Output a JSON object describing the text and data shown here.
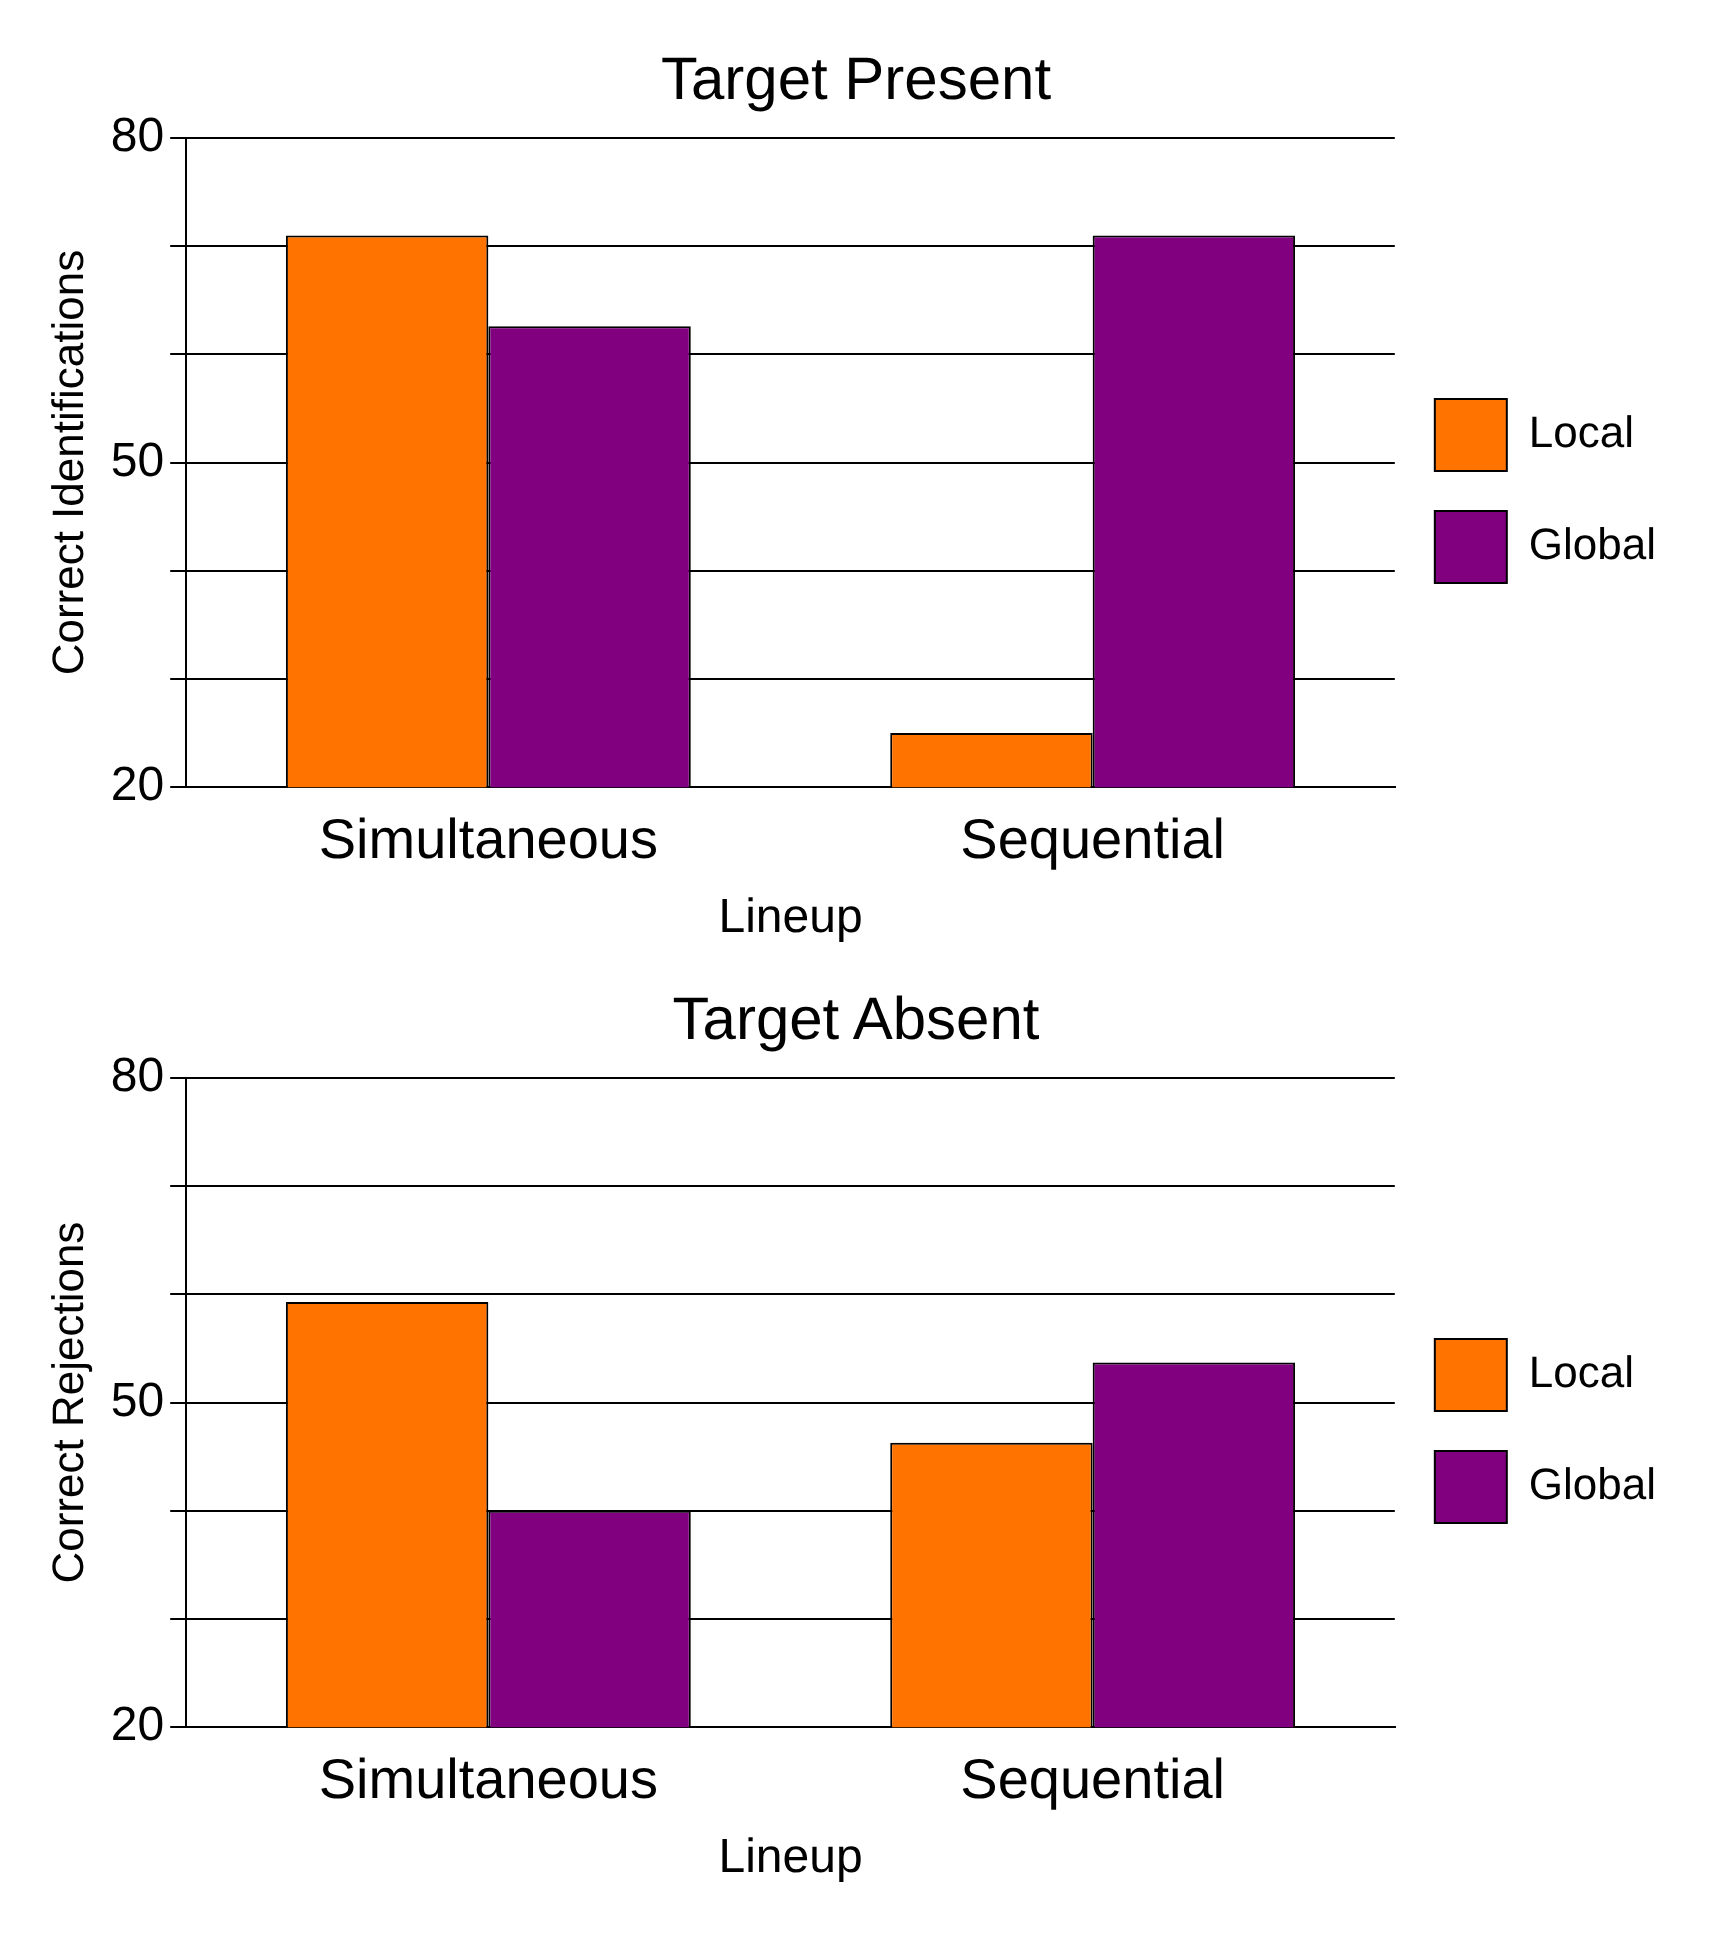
{
  "chart_data": [
    {
      "type": "bar",
      "title": "Target Present",
      "xlabel": "Lineup",
      "ylabel": "Correct Identifications",
      "categories": [
        "Simultaneous",
        "Sequential"
      ],
      "series": [
        {
          "name": "Local",
          "color": "#ff7300",
          "values": [
            71,
            25
          ]
        },
        {
          "name": "Global",
          "color": "#800080",
          "values": [
            62.6,
            71
          ]
        }
      ],
      "ylim": [
        20,
        80
      ],
      "yticks": [
        20,
        {
          "value": 30,
          "label": null
        },
        {
          "value": 40,
          "label": null
        },
        50,
        {
          "value": 60,
          "label": null
        },
        {
          "value": 70,
          "label": null
        },
        80
      ],
      "grid": "y",
      "legend": "right"
    },
    {
      "type": "bar",
      "title": "Target Absent",
      "xlabel": "Lineup",
      "ylabel": "Correct Rejections",
      "categories": [
        "Simultaneous",
        "Sequential"
      ],
      "series": [
        {
          "name": "Local",
          "color": "#ff7300",
          "values": [
            59.3,
            46.3
          ]
        },
        {
          "name": "Global",
          "color": "#800080",
          "values": [
            40,
            53.7
          ]
        }
      ],
      "ylim": [
        20,
        80
      ],
      "yticks": [
        20,
        {
          "value": 30,
          "label": null
        },
        {
          "value": 40,
          "label": null
        },
        50,
        {
          "value": 60,
          "label": null
        },
        {
          "value": 70,
          "label": null
        },
        80
      ],
      "grid": "y",
      "legend": "right"
    }
  ]
}
